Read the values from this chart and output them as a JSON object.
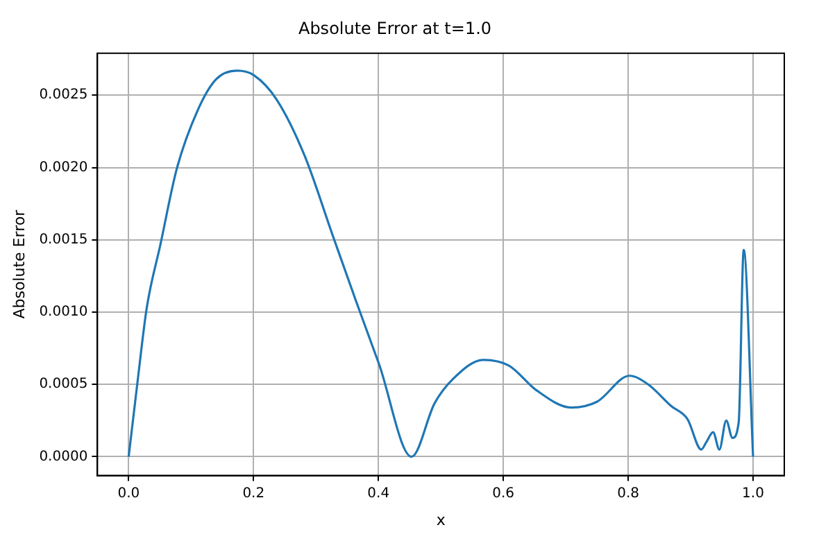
{
  "chart_data": {
    "type": "line",
    "title": "Absolute Error at t=1.0",
    "xlabel": "x",
    "ylabel": "Absolute Error",
    "x": [
      0,
      0.014,
      0.029,
      0.051,
      0.077,
      0.111,
      0.14,
      0.174,
      0.2,
      0.237,
      0.282,
      0.326,
      0.363,
      0.401,
      0.453,
      0.49,
      0.52,
      0.568,
      0.609,
      0.653,
      0.709,
      0.75,
      0.802,
      0.832,
      0.869,
      0.895,
      0.917,
      0.925,
      0.936,
      0.946,
      0.957,
      0.967,
      0.977,
      0.985,
      1.0
    ],
    "series": [
      {
        "color": "#1f77b4",
        "values": [
          0,
          0.00051,
          0.00103,
          0.00147,
          0.00199,
          0.0024,
          0.00261,
          0.00267,
          0.00264,
          0.00247,
          0.00208,
          0.00154,
          0.00109,
          0.00064,
          0,
          0.00037,
          0.00054,
          0.00067,
          0.00063,
          0.00046,
          0.00034,
          0.00038,
          0.00056,
          0.0005,
          0.00035,
          0.00026,
          5e-05,
          0.0001,
          0.00017,
          5e-05,
          0.00025,
          0.00013,
          0.00024,
          0.00143,
          0
        ]
      }
    ],
    "xlim": [
      -0.05,
      1.05
    ],
    "ylim": [
      -0.00013,
      0.00279
    ],
    "xticks": [
      {
        "value": 0,
        "label": "0.0"
      },
      {
        "value": 0.2,
        "label": "0.2"
      },
      {
        "value": 0.4,
        "label": "0.4"
      },
      {
        "value": 0.6,
        "label": "0.6"
      },
      {
        "value": 0.8,
        "label": "0.8"
      },
      {
        "value": 1,
        "label": "1.0"
      }
    ],
    "yticks": [
      {
        "value": 0,
        "label": "0.0000"
      },
      {
        "value": 0.0005,
        "label": "0.0005"
      },
      {
        "value": 0.001,
        "label": "0.0010"
      },
      {
        "value": 0.0015,
        "label": "0.0015"
      },
      {
        "value": 0.002,
        "label": "0.0020"
      },
      {
        "value": 0.0025,
        "label": "0.0025"
      }
    ],
    "grid": true,
    "legend": false,
    "marker": "none",
    "line_style": "solid"
  }
}
